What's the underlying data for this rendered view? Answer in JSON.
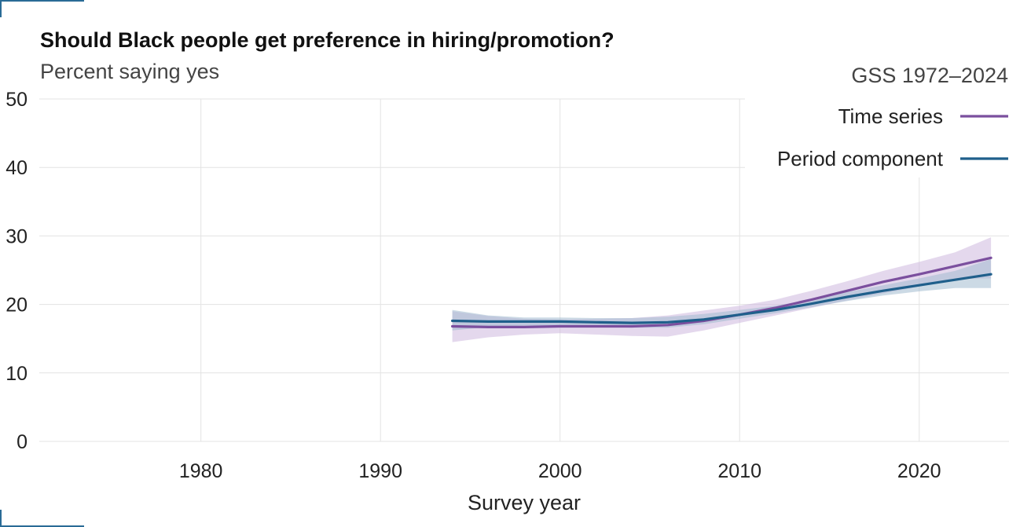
{
  "header": {
    "title": "Should Black people get preference in hiring/promotion?",
    "subtitle": "Percent saying yes"
  },
  "chart_data": {
    "type": "line",
    "title": "Should Black people get preference in hiring/promotion?",
    "subtitle": "Percent saying yes",
    "xlabel": "Survey year",
    "ylabel": "",
    "xlim": [
      1971,
      2025
    ],
    "ylim": [
      0,
      50
    ],
    "x_ticks": [
      1980,
      1990,
      2000,
      2010,
      2020
    ],
    "y_ticks": [
      0,
      10,
      20,
      30,
      40,
      50
    ],
    "grid": true,
    "legend": {
      "title": "GSS 1972–2024",
      "placement": "top-right"
    },
    "series": [
      {
        "name": "Time series",
        "color": "#7b4f9e",
        "band_color": "#cdb8de",
        "x": [
          1994,
          1996,
          1998,
          2000,
          2002,
          2004,
          2006,
          2008,
          2010,
          2012,
          2014,
          2016,
          2018,
          2020,
          2022,
          2024
        ],
        "y": [
          16.8,
          16.7,
          16.7,
          16.8,
          16.8,
          16.8,
          17.0,
          17.6,
          18.5,
          19.5,
          20.7,
          22.0,
          23.3,
          24.4,
          25.6,
          26.8
        ],
        "lower": [
          14.5,
          15.2,
          15.6,
          15.8,
          15.6,
          15.4,
          15.3,
          16.2,
          17.3,
          18.4,
          19.5,
          20.6,
          21.6,
          22.6,
          23.7,
          23.8
        ],
        "upper": [
          19.0,
          18.3,
          17.9,
          17.8,
          17.9,
          18.0,
          18.4,
          19.1,
          19.8,
          20.7,
          22.0,
          23.4,
          24.9,
          26.2,
          27.6,
          29.8
        ]
      },
      {
        "name": "Period component",
        "color": "#1f5f8b",
        "band_color": "#a3bccf",
        "x": [
          1994,
          1996,
          1998,
          2000,
          2002,
          2004,
          2006,
          2008,
          2010,
          2012,
          2014,
          2016,
          2018,
          2020,
          2022,
          2024
        ],
        "y": [
          17.6,
          17.5,
          17.5,
          17.5,
          17.4,
          17.3,
          17.4,
          17.8,
          18.5,
          19.2,
          20.1,
          21.1,
          22.0,
          22.8,
          23.6,
          24.4
        ],
        "lower": [
          16.2,
          16.7,
          16.9,
          16.9,
          16.8,
          16.6,
          16.6,
          17.1,
          17.9,
          18.7,
          19.6,
          20.5,
          21.3,
          21.9,
          22.4,
          22.4
        ],
        "upper": [
          19.2,
          18.4,
          18.1,
          18.1,
          18.0,
          18.0,
          18.2,
          18.6,
          19.2,
          19.8,
          20.7,
          21.8,
          22.8,
          23.8,
          24.9,
          26.6
        ]
      }
    ]
  }
}
